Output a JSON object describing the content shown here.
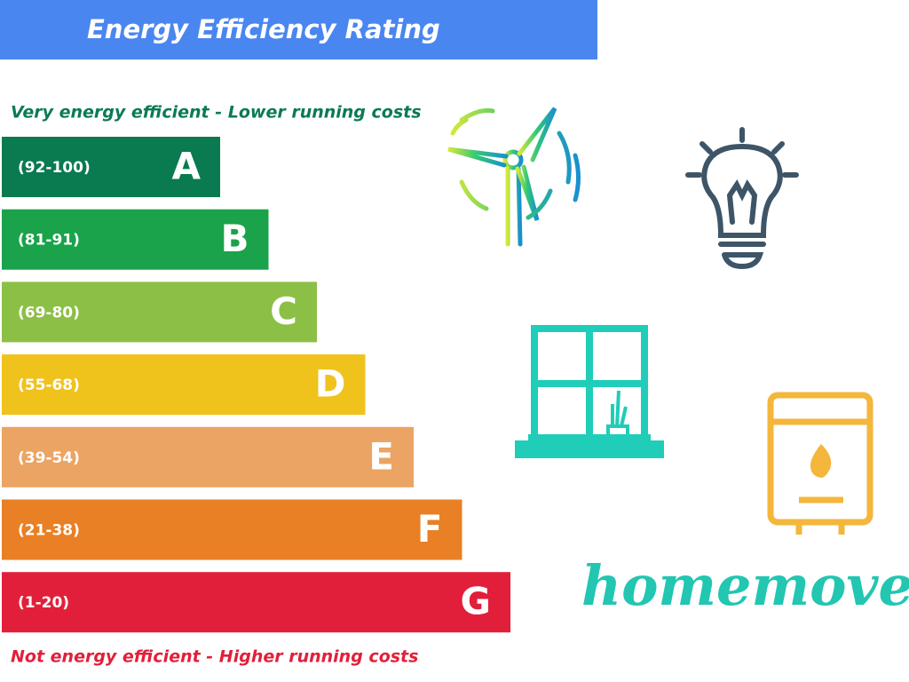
{
  "header": {
    "title": "Energy Efficiency Rating"
  },
  "top_note": "Very energy efficient - Lower running costs",
  "bands": [
    {
      "range": "(92-100)",
      "letter": "A",
      "color": "#0a7a50"
    },
    {
      "range": "(81-91)",
      "letter": "B",
      "color": "#1aa34a"
    },
    {
      "range": "(69-80)",
      "letter": "C",
      "color": "#8cbf45"
    },
    {
      "range": "(55-68)",
      "letter": "D",
      "color": "#f0c21c"
    },
    {
      "range": "(39-54)",
      "letter": "E",
      "color": "#eba463"
    },
    {
      "range": "(21-38)",
      "letter": "F",
      "color": "#e98025"
    },
    {
      "range": "(1-20)",
      "letter": "G",
      "color": "#e21f3a"
    }
  ],
  "bottom_note": "Not energy efficient - Higher running costs",
  "logo": "homemove"
}
